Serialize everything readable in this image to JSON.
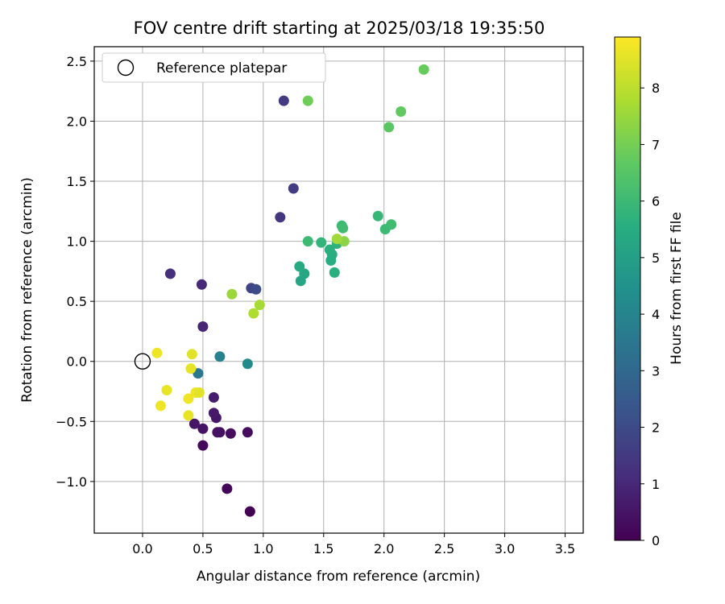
{
  "chart_data": {
    "type": "scatter",
    "title": "FOV centre drift starting at 2025/03/18 19:35:50",
    "xlabel": "Angular distance from reference (arcmin)",
    "ylabel": "Rotation from reference (arcmin)",
    "xlim": [
      -0.4,
      3.65
    ],
    "ylim": [
      -1.43,
      2.62
    ],
    "xticks": [
      0.0,
      0.5,
      1.0,
      1.5,
      2.0,
      2.5,
      3.0,
      3.5
    ],
    "xtick_labels": [
      "0.0",
      "0.5",
      "1.0",
      "1.5",
      "2.0",
      "2.5",
      "3.0",
      "3.5"
    ],
    "yticks": [
      -1.0,
      -0.5,
      0.0,
      0.5,
      1.0,
      1.5,
      2.0,
      2.5
    ],
    "ytick_labels": [
      "−1.0",
      "−0.5",
      "0.0",
      "0.5",
      "1.0",
      "1.5",
      "2.0",
      "2.5"
    ],
    "grid": true,
    "legend": {
      "position": "top-left",
      "entries": [
        "Reference platepar"
      ]
    },
    "reference": {
      "x": 0.0,
      "y": 0.0
    },
    "colorbar": {
      "label": "Hours from first FF file",
      "min": 0,
      "max": 8.9,
      "ticks": [
        0,
        1,
        2,
        3,
        4,
        5,
        6,
        7,
        8
      ],
      "tick_labels": [
        "0",
        "1",
        "2",
        "3",
        "4",
        "5",
        "6",
        "7",
        "8"
      ],
      "colormap": "viridis"
    },
    "points": [
      {
        "x": 0.89,
        "y": -1.25,
        "c": 0.0
      },
      {
        "x": 0.7,
        "y": -1.06,
        "c": 0.1
      },
      {
        "x": 0.5,
        "y": -0.7,
        "c": 0.2
      },
      {
        "x": 0.73,
        "y": -0.6,
        "c": 0.25
      },
      {
        "x": 0.87,
        "y": -0.59,
        "c": 0.3
      },
      {
        "x": 0.64,
        "y": -0.59,
        "c": 0.35
      },
      {
        "x": 0.62,
        "y": -0.59,
        "c": 0.4
      },
      {
        "x": 0.5,
        "y": -0.56,
        "c": 0.45
      },
      {
        "x": 0.43,
        "y": -0.52,
        "c": 0.5
      },
      {
        "x": 0.61,
        "y": -0.47,
        "c": 0.55
      },
      {
        "x": 0.59,
        "y": -0.43,
        "c": 0.6
      },
      {
        "x": 0.59,
        "y": -0.3,
        "c": 0.7
      },
      {
        "x": 0.5,
        "y": 0.29,
        "c": 0.9
      },
      {
        "x": 0.49,
        "y": 0.64,
        "c": 1.0
      },
      {
        "x": 0.23,
        "y": 0.73,
        "c": 1.2
      },
      {
        "x": 1.14,
        "y": 1.2,
        "c": 1.4
      },
      {
        "x": 1.25,
        "y": 1.44,
        "c": 1.6
      },
      {
        "x": 1.17,
        "y": 2.17,
        "c": 1.5
      },
      {
        "x": 0.9,
        "y": 0.61,
        "c": 1.8
      },
      {
        "x": 0.94,
        "y": 0.6,
        "c": 2.0
      },
      {
        "x": 0.46,
        "y": -0.1,
        "c": 3.5
      },
      {
        "x": 0.64,
        "y": 0.04,
        "c": 3.9
      },
      {
        "x": 0.87,
        "y": -0.02,
        "c": 4.2
      },
      {
        "x": 1.31,
        "y": 0.67,
        "c": 5.2
      },
      {
        "x": 1.34,
        "y": 0.73,
        "c": 5.3
      },
      {
        "x": 1.3,
        "y": 0.79,
        "c": 5.4
      },
      {
        "x": 1.56,
        "y": 0.84,
        "c": 5.5
      },
      {
        "x": 1.57,
        "y": 0.89,
        "c": 5.5
      },
      {
        "x": 1.55,
        "y": 0.93,
        "c": 5.6
      },
      {
        "x": 1.59,
        "y": 0.74,
        "c": 5.6
      },
      {
        "x": 1.61,
        "y": 0.98,
        "c": 5.7
      },
      {
        "x": 1.48,
        "y": 0.99,
        "c": 5.8
      },
      {
        "x": 1.37,
        "y": 1.0,
        "c": 6.0
      },
      {
        "x": 1.65,
        "y": 1.13,
        "c": 6.0
      },
      {
        "x": 1.66,
        "y": 1.11,
        "c": 6.1
      },
      {
        "x": 1.95,
        "y": 1.21,
        "c": 5.9
      },
      {
        "x": 2.01,
        "y": 1.1,
        "c": 6.0
      },
      {
        "x": 2.06,
        "y": 1.14,
        "c": 6.1
      },
      {
        "x": 2.04,
        "y": 1.95,
        "c": 6.6
      },
      {
        "x": 2.14,
        "y": 2.08,
        "c": 6.7
      },
      {
        "x": 1.37,
        "y": 2.17,
        "c": 6.9
      },
      {
        "x": 2.33,
        "y": 2.43,
        "c": 6.8
      },
      {
        "x": 1.67,
        "y": 1.0,
        "c": 7.3
      },
      {
        "x": 1.61,
        "y": 1.02,
        "c": 7.6
      },
      {
        "x": 0.74,
        "y": 0.56,
        "c": 7.5
      },
      {
        "x": 0.97,
        "y": 0.47,
        "c": 7.7
      },
      {
        "x": 0.92,
        "y": 0.4,
        "c": 7.8
      },
      {
        "x": 0.12,
        "y": 0.07,
        "c": 8.7
      },
      {
        "x": 0.41,
        "y": 0.06,
        "c": 8.5
      },
      {
        "x": 0.4,
        "y": -0.06,
        "c": 8.6
      },
      {
        "x": 0.2,
        "y": -0.24,
        "c": 8.6
      },
      {
        "x": 0.44,
        "y": -0.26,
        "c": 8.7
      },
      {
        "x": 0.47,
        "y": -0.26,
        "c": 8.5
      },
      {
        "x": 0.38,
        "y": -0.31,
        "c": 8.7
      },
      {
        "x": 0.15,
        "y": -0.37,
        "c": 8.7
      },
      {
        "x": 0.38,
        "y": -0.45,
        "c": 8.6
      }
    ]
  }
}
